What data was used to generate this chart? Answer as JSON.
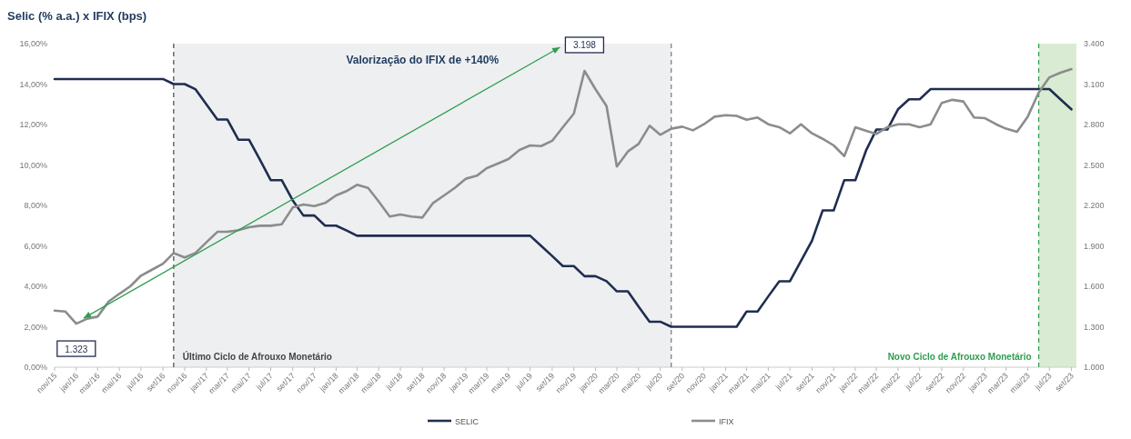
{
  "chart_data": {
    "type": "line",
    "title": "Selic (% a.a.) x IFIX (bps)",
    "x": [
      "2015-11",
      "2015-12",
      "2016-01",
      "2016-02",
      "2016-03",
      "2016-04",
      "2016-05",
      "2016-06",
      "2016-07",
      "2016-08",
      "2016-09",
      "2016-10",
      "2016-11",
      "2016-12",
      "2017-01",
      "2017-02",
      "2017-03",
      "2017-04",
      "2017-05",
      "2017-06",
      "2017-07",
      "2017-08",
      "2017-09",
      "2017-10",
      "2017-11",
      "2017-12",
      "2018-01",
      "2018-02",
      "2018-03",
      "2018-04",
      "2018-05",
      "2018-06",
      "2018-07",
      "2018-08",
      "2018-09",
      "2018-10",
      "2018-11",
      "2018-12",
      "2019-01",
      "2019-02",
      "2019-03",
      "2019-04",
      "2019-05",
      "2019-06",
      "2019-07",
      "2019-08",
      "2019-09",
      "2019-10",
      "2019-11",
      "2019-12",
      "2020-01",
      "2020-02",
      "2020-03",
      "2020-04",
      "2020-05",
      "2020-06",
      "2020-07",
      "2020-08",
      "2020-09",
      "2020-10",
      "2020-11",
      "2020-12",
      "2021-01",
      "2021-02",
      "2021-03",
      "2021-04",
      "2021-05",
      "2021-06",
      "2021-07",
      "2021-08",
      "2021-09",
      "2021-10",
      "2021-11",
      "2021-12",
      "2022-01",
      "2022-02",
      "2022-03",
      "2022-04",
      "2022-05",
      "2022-06",
      "2022-07",
      "2022-08",
      "2022-09",
      "2022-10",
      "2022-11",
      "2022-12",
      "2023-01",
      "2023-02",
      "2023-03",
      "2023-04",
      "2023-05",
      "2023-06",
      "2023-07",
      "2023-08",
      "2023-09"
    ],
    "series": [
      {
        "name": "SELIC",
        "color": "#1f2d50",
        "values": [
          14.25,
          14.25,
          14.25,
          14.25,
          14.25,
          14.25,
          14.25,
          14.25,
          14.25,
          14.25,
          14.25,
          14.0,
          14.0,
          13.75,
          13.0,
          12.25,
          12.25,
          11.25,
          11.25,
          10.25,
          9.25,
          9.25,
          8.25,
          7.5,
          7.5,
          7.0,
          7.0,
          6.75,
          6.5,
          6.5,
          6.5,
          6.5,
          6.5,
          6.5,
          6.5,
          6.5,
          6.5,
          6.5,
          6.5,
          6.5,
          6.5,
          6.5,
          6.5,
          6.5,
          6.5,
          6.0,
          5.5,
          5.0,
          5.0,
          4.5,
          4.5,
          4.25,
          3.75,
          3.75,
          3.0,
          2.25,
          2.25,
          2.0,
          2.0,
          2.0,
          2.0,
          2.0,
          2.0,
          2.0,
          2.75,
          2.75,
          3.5,
          4.25,
          4.25,
          5.25,
          6.25,
          7.75,
          7.75,
          9.25,
          9.25,
          10.75,
          11.75,
          11.75,
          12.75,
          13.25,
          13.25,
          13.75,
          13.75,
          13.75,
          13.75,
          13.75,
          13.75,
          13.75,
          13.75,
          13.75,
          13.75,
          13.75,
          13.75,
          13.25,
          12.75
        ]
      },
      {
        "name": "IFIX",
        "color": "#8c8c8c",
        "axis": "y2",
        "values": [
          1420,
          1413,
          1323,
          1360,
          1375,
          1487,
          1544,
          1600,
          1679,
          1723,
          1768,
          1847,
          1814,
          1847,
          1926,
          2004,
          2004,
          2016,
          2038,
          2049,
          2049,
          2060,
          2184,
          2207,
          2195,
          2218,
          2274,
          2308,
          2353,
          2330,
          2229,
          2117,
          2133,
          2117,
          2110,
          2218,
          2274,
          2330,
          2398,
          2420,
          2476,
          2510,
          2544,
          2611,
          2645,
          2640,
          2679,
          2780,
          2881,
          3198,
          3061,
          2937,
          2488,
          2600,
          2656,
          2791,
          2724,
          2769,
          2784,
          2757,
          2802,
          2858,
          2869,
          2864,
          2836,
          2852,
          2802,
          2780,
          2735,
          2802,
          2735,
          2694,
          2645,
          2566,
          2780,
          2753,
          2730,
          2780,
          2802,
          2802,
          2780,
          2802,
          2960,
          2983,
          2971,
          2852,
          2847,
          2802,
          2769,
          2746,
          2858,
          3038,
          3150,
          3184,
          3211
        ],
        "value_labels": [
          null,
          null,
          "1.323",
          null,
          null,
          null,
          null,
          null,
          null,
          null,
          null,
          null,
          null,
          null,
          null,
          null,
          null,
          null,
          null,
          null,
          null,
          null,
          null,
          null,
          null,
          null,
          null,
          null,
          null,
          null,
          null,
          null,
          null,
          null,
          null,
          null,
          null,
          null,
          null,
          null,
          null,
          null,
          null,
          null,
          null,
          null,
          null,
          null,
          null,
          "3.198",
          null,
          null,
          null,
          null,
          null,
          null,
          null,
          null,
          null,
          null,
          null,
          null,
          null,
          null,
          null,
          null,
          null,
          null,
          null,
          null,
          null,
          null,
          null,
          null,
          null,
          null,
          null,
          null,
          null,
          null,
          null,
          null,
          null,
          null,
          null,
          null,
          null,
          null,
          null,
          null,
          null,
          null,
          null,
          null,
          null
        ]
      }
    ],
    "xlim": [
      "2015-11-01",
      "2023-09-15"
    ],
    "xticks": [
      {
        "value": "2015-11",
        "label": "nov/15"
      },
      {
        "value": "2016-01",
        "label": "jan/16"
      },
      {
        "value": "2016-03",
        "label": "mar/16"
      },
      {
        "value": "2016-05",
        "label": "mai/16"
      },
      {
        "value": "2016-07",
        "label": "jul/16"
      },
      {
        "value": "2016-09",
        "label": "set/16"
      },
      {
        "value": "2016-11",
        "label": "nov/16"
      },
      {
        "value": "2017-01",
        "label": "jan/17"
      },
      {
        "value": "2017-03",
        "label": "mar/17"
      },
      {
        "value": "2017-05",
        "label": "mai/17"
      },
      {
        "value": "2017-07",
        "label": "jul/17"
      },
      {
        "value": "2017-09",
        "label": "set/17"
      },
      {
        "value": "2017-11",
        "label": "nov/17"
      },
      {
        "value": "2018-01",
        "label": "jan/18"
      },
      {
        "value": "2018-03",
        "label": "mar/18"
      },
      {
        "value": "2018-05",
        "label": "mai/18"
      },
      {
        "value": "2018-07",
        "label": "jul/18"
      },
      {
        "value": "2018-09",
        "label": "set/18"
      },
      {
        "value": "2018-11",
        "label": "nov/18"
      },
      {
        "value": "2019-01",
        "label": "jan/19"
      },
      {
        "value": "2019-03",
        "label": "mar/19"
      },
      {
        "value": "2019-05",
        "label": "mai/19"
      },
      {
        "value": "2019-07",
        "label": "jul/19"
      },
      {
        "value": "2019-09",
        "label": "set/19"
      },
      {
        "value": "2019-11",
        "label": "nov/19"
      },
      {
        "value": "2020-01",
        "label": "jan/20"
      },
      {
        "value": "2020-03",
        "label": "mar/20"
      },
      {
        "value": "2020-05",
        "label": "mai/20"
      },
      {
        "value": "2020-07",
        "label": "jul/20"
      },
      {
        "value": "2020-09",
        "label": "set/20"
      },
      {
        "value": "2020-11",
        "label": "nov/20"
      },
      {
        "value": "2021-01",
        "label": "jan/21"
      },
      {
        "value": "2021-03",
        "label": "mar/21"
      },
      {
        "value": "2021-05",
        "label": "mai/21"
      },
      {
        "value": "2021-07",
        "label": "jul/21"
      },
      {
        "value": "2021-09",
        "label": "set/21"
      },
      {
        "value": "2021-11",
        "label": "nov/21"
      },
      {
        "value": "2022-01",
        "label": "jan/22"
      },
      {
        "value": "2022-03",
        "label": "mar/22"
      },
      {
        "value": "2022-05",
        "label": "mai/22"
      },
      {
        "value": "2022-07",
        "label": "jul/22"
      },
      {
        "value": "2022-09",
        "label": "set/22"
      },
      {
        "value": "2022-11",
        "label": "nov/22"
      },
      {
        "value": "2023-01",
        "label": "jan/23"
      },
      {
        "value": "2023-03",
        "label": "mar/23"
      },
      {
        "value": "2023-05",
        "label": "mai/23"
      },
      {
        "value": "2023-07",
        "label": "jul/23"
      },
      {
        "value": "2023-09",
        "label": "set/23"
      }
    ],
    "ylim": [
      0,
      16
    ],
    "yticks": [
      {
        "value": 0,
        "label": "0,00%"
      },
      {
        "value": 2,
        "label": "2,00%"
      },
      {
        "value": 4,
        "label": "4,00%"
      },
      {
        "value": 6,
        "label": "6,00%"
      },
      {
        "value": 8,
        "label": "8,00%"
      },
      {
        "value": 10,
        "label": "10,00%"
      },
      {
        "value": 12,
        "label": "12,00%"
      },
      {
        "value": 14,
        "label": "14,00%"
      },
      {
        "value": 16,
        "label": "16,00%"
      }
    ],
    "y2lim": [
      1000,
      3400
    ],
    "y2ticks": [
      {
        "value": 1000,
        "label": "1.000"
      },
      {
        "value": 1300,
        "label": "1.300"
      },
      {
        "value": 1600,
        "label": "1.600"
      },
      {
        "value": 1900,
        "label": "1.900"
      },
      {
        "value": 2200,
        "label": "2.200"
      },
      {
        "value": 2500,
        "label": "2.500"
      },
      {
        "value": 2800,
        "label": "2.800"
      },
      {
        "value": 3100,
        "label": "3.100"
      },
      {
        "value": 3400,
        "label": "3.400"
      }
    ],
    "bands": [
      {
        "axis": "x",
        "from": "2016-10",
        "to": "2020-08",
        "color": "#eeeff1"
      },
      {
        "axis": "x",
        "from": "2023-06",
        "to": "2023-09-15",
        "color": "#d9ecd3"
      }
    ],
    "ref_lines": [
      {
        "axis": "x",
        "value": "2016-10",
        "label": "Último Ciclo de Afrouxo Monetário",
        "color": "#444444",
        "line_style": "dashed"
      },
      {
        "axis": "x",
        "value": "2020-08",
        "label": null,
        "color": "#777777",
        "line_style": "dashed"
      },
      {
        "axis": "x",
        "value": "2023-06",
        "label": "Novo Ciclo de Afrouxo Monetário",
        "color": "#2e9e4f",
        "line_style": "dashed"
      }
    ],
    "annotations": [
      "Valorização do IFIX de +140%"
    ],
    "legend": "bottom",
    "grid": false,
    "marker": "none",
    "line_style": "solid"
  }
}
